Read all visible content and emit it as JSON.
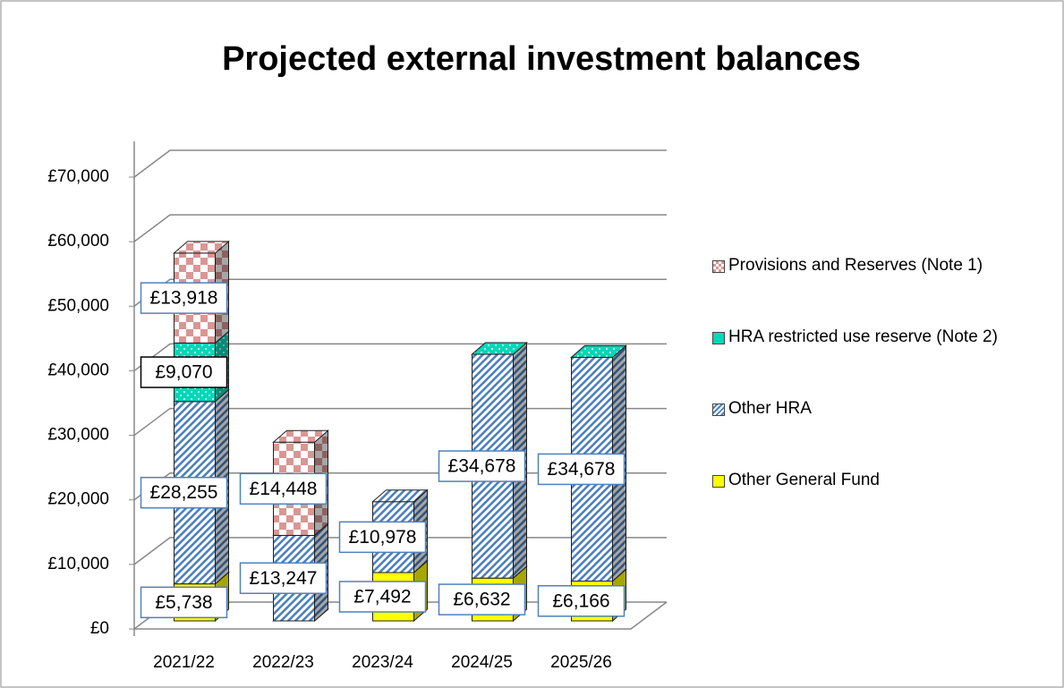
{
  "chart_data": {
    "type": "bar3d-stacked",
    "title": "Projected external investment balances",
    "categories": [
      "2021/22",
      "2022/23",
      "2023/24",
      "2024/25",
      "2025/26"
    ],
    "series": [
      {
        "name": "Other General Fund",
        "color": "#ffff00",
        "values": [
          5738,
          0,
          7492,
          6632,
          6166
        ],
        "value_labels": [
          "£5,738",
          null,
          "£7,492",
          "£6,632",
          "£6,166"
        ]
      },
      {
        "name": "Other HRA",
        "color": "#4f81bd",
        "values": [
          28255,
          13247,
          10978,
          34678,
          34678
        ],
        "value_labels": [
          "£28,255",
          "£13,247",
          "£10,978",
          "£34,678",
          "£34,678"
        ]
      },
      {
        "name": "HRA restricted use reserve (Note 2)",
        "color": "#00d8b8",
        "values": [
          9070,
          null,
          null,
          0,
          0
        ],
        "value_labels": [
          "£9,070",
          null,
          null,
          null,
          null
        ]
      },
      {
        "name": "Provisions and Reserves (Note 1)",
        "color": "#d99694",
        "values": [
          13918,
          14448,
          null,
          null,
          null
        ],
        "value_labels": [
          "£13,918",
          "£14,448",
          null,
          null,
          null
        ]
      }
    ],
    "ylim": [
      0,
      70000
    ],
    "yticks": [
      {
        "value": 0,
        "label": "£0"
      },
      {
        "value": 10000,
        "label": "£10,000"
      },
      {
        "value": 20000,
        "label": "£20,000"
      },
      {
        "value": 30000,
        "label": "£30,000"
      },
      {
        "value": 40000,
        "label": "£40,000"
      },
      {
        "value": 50000,
        "label": "£50,000"
      },
      {
        "value": 60000,
        "label": "£60,000"
      },
      {
        "value": 70000,
        "label": "£70,000"
      }
    ],
    "grid": true
  }
}
